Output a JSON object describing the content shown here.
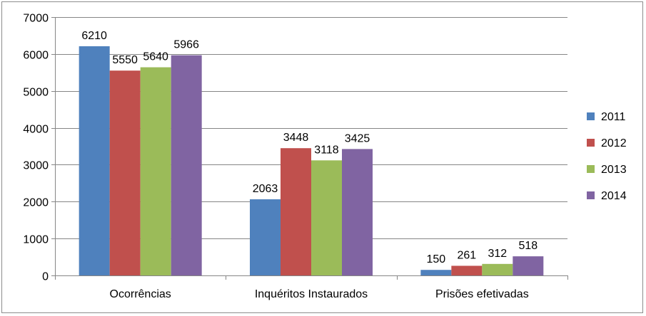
{
  "chart_data": {
    "type": "bar",
    "title": "",
    "xlabel": "",
    "ylabel": "",
    "categories": [
      "Ocorrências",
      "Inquéritos Instaurados",
      "Prisões efetivadas"
    ],
    "series": [
      {
        "name": "2011",
        "color": "#4F81BD",
        "values": [
          6210,
          2063,
          150
        ]
      },
      {
        "name": "2012",
        "color": "#C0504D",
        "values": [
          5550,
          3448,
          261
        ]
      },
      {
        "name": "2013",
        "color": "#9BBB59",
        "values": [
          5640,
          3118,
          312
        ]
      },
      {
        "name": "2014",
        "color": "#8064A2",
        "values": [
          5966,
          3425,
          518
        ]
      }
    ],
    "ylim": [
      0,
      7000
    ],
    "yticks": [
      0,
      1000,
      2000,
      3000,
      4000,
      5000,
      6000,
      7000
    ],
    "grid": true,
    "legend_position": "right",
    "data_labels": true
  }
}
